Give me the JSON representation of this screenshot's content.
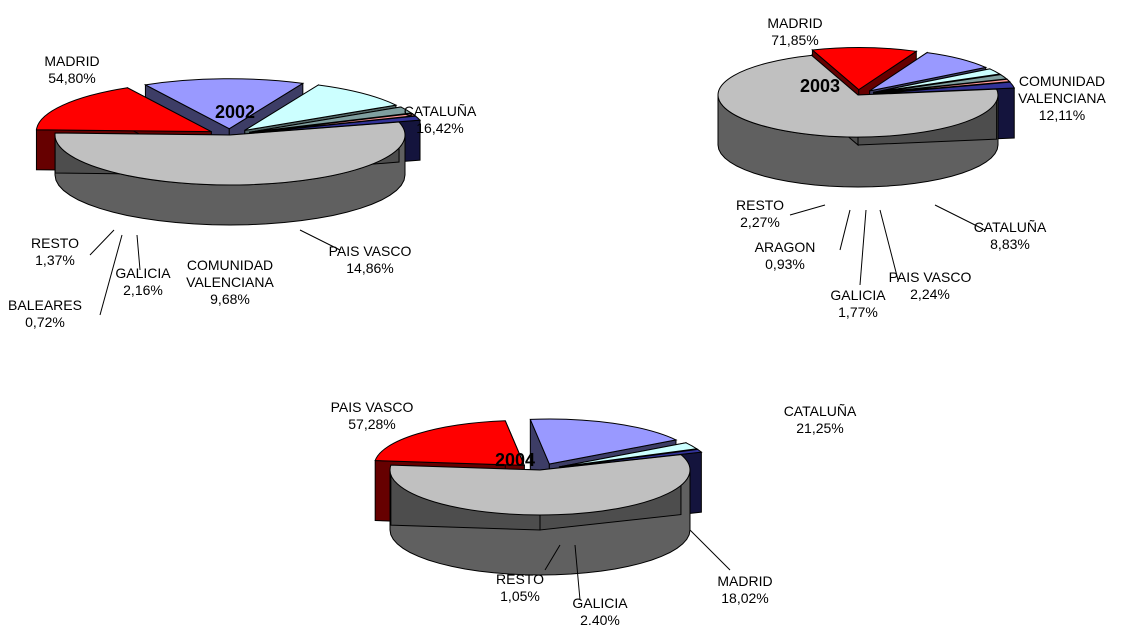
{
  "colors": {
    "MADRID": "#c0c0c0",
    "PAIS VASCO": "#c0c0c0",
    "CATALUÑA": "#ff0000",
    "COMUNIDAD VALENCIANA": "#ccffff",
    "GALICIA": "#7f9f9f",
    "BALEARES": "#ff9999",
    "ARAGON": "#ff9999",
    "RESTO": "#333399",
    "PAIS VASCO (blue)": "#9999ff",
    "MADRID (blue)": "#9999ff",
    "CATALUÑA (blue)": "#9999ff"
  },
  "chart_data": [
    {
      "type": "pie",
      "title": "2002",
      "slices": [
        {
          "name": "MADRID",
          "value": 54.8,
          "label": "MADRID",
          "pct": "54,80%"
        },
        {
          "name": "CATALUÑA",
          "value": 16.42,
          "label": "CATALUÑA",
          "pct": "16,42%"
        },
        {
          "name": "PAIS VASCO",
          "value": 14.86,
          "label": "PAIS VASCO",
          "pct": "14,86%"
        },
        {
          "name": "COMUNIDAD VALENCIANA",
          "value": 9.68,
          "label": "COMUNIDAD\nVALENCIANA",
          "pct": "9,68%"
        },
        {
          "name": "GALICIA",
          "value": 2.16,
          "label": "GALICIA",
          "pct": "2,16%"
        },
        {
          "name": "BALEARES",
          "value": 0.72,
          "label": "BALEARES",
          "pct": "0,72%"
        },
        {
          "name": "RESTO",
          "value": 1.37,
          "label": "RESTO",
          "pct": "1,37%"
        }
      ]
    },
    {
      "type": "pie",
      "title": "2003",
      "slices": [
        {
          "name": "MADRID",
          "value": 71.85,
          "label": "MADRID",
          "pct": "71,85%"
        },
        {
          "name": "COMUNIDAD VALENCIANA",
          "value": 12.11,
          "label": "COMUNIDAD\nVALENCIANA",
          "pct": "12,11%"
        },
        {
          "name": "CATALUÑA",
          "value": 8.83,
          "label": "CATALUÑA",
          "pct": "8,83%"
        },
        {
          "name": "PAIS VASCO",
          "value": 2.24,
          "label": "PAIS VASCO",
          "pct": "2,24%"
        },
        {
          "name": "GALICIA",
          "value": 1.77,
          "label": "GALICIA",
          "pct": "1,77%"
        },
        {
          "name": "ARAGON",
          "value": 0.93,
          "label": "ARAGON",
          "pct": "0,93%"
        },
        {
          "name": "RESTO",
          "value": 2.27,
          "label": "RESTO",
          "pct": "2,27%"
        }
      ]
    },
    {
      "type": "pie",
      "title": "2004",
      "slices": [
        {
          "name": "PAIS VASCO",
          "value": 57.28,
          "label": "PAIS VASCO",
          "pct": "57,28%"
        },
        {
          "name": "CATALUÑA",
          "value": 21.25,
          "label": "CATALUÑA",
          "pct": "21,25%"
        },
        {
          "name": "MADRID",
          "value": 18.02,
          "label": "MADRID",
          "pct": "18,02%"
        },
        {
          "name": "GALICIA",
          "value": 2.4,
          "label": "GALICIA",
          "pct": "2.40%"
        },
        {
          "name": "RESTO",
          "value": 1.05,
          "label": "RESTO",
          "pct": "1,05%"
        }
      ]
    }
  ]
}
